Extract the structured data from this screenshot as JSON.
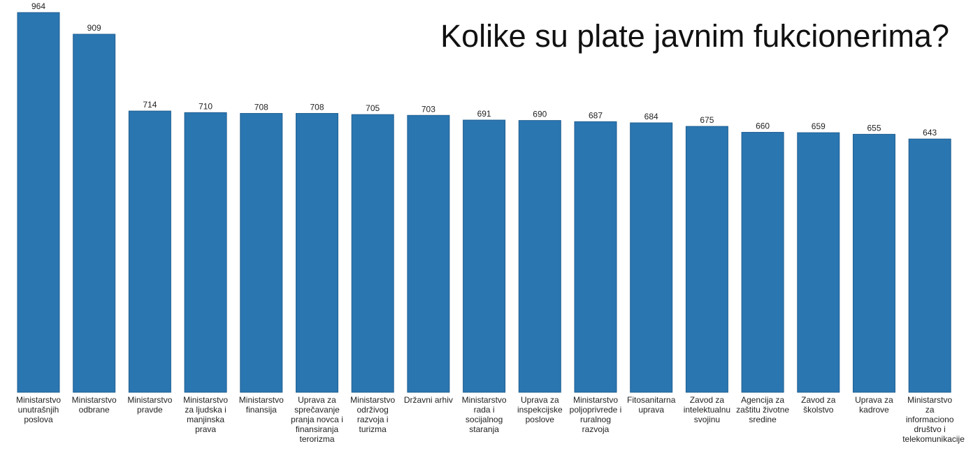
{
  "chart_data": {
    "type": "bar",
    "title": "Kolike su plate javnim fukcionerima?",
    "xlabel": "",
    "ylabel": "",
    "ylim": [
      0,
      964
    ],
    "grid": false,
    "bar_color": "#2a76b1",
    "bar_edge_color": "#1f5f92",
    "categories": [
      "Ministarstvo unutrašnjih poslova",
      "Ministarstvo odbrane",
      "Ministarstvo pravde",
      "Ministarstvo za ljudska i manjinska prava",
      "Ministarstvo finansija",
      "Uprava za sprečavanje pranja novca i finansiranja terorizma",
      "Ministarstvo održivog razvoja i turizma",
      "Državni arhiv",
      "Ministarstvo rada i socijalnog staranja",
      "Uprava za inspekcijske poslove",
      "Ministarstvo poljoprivrede i ruralnog razvoja",
      "Fitosanitarna uprava",
      "Zavod za intelektualnu svojinu",
      "Agencija za zaštitu životne sredine",
      "Zavod za školstvo",
      "Uprava za kadrove",
      "Ministarstvo za informaciono društvo i telekomunikacije"
    ],
    "values": [
      964,
      909,
      714,
      710,
      708,
      708,
      705,
      703,
      691,
      690,
      687,
      684,
      675,
      660,
      659,
      655,
      643
    ]
  }
}
